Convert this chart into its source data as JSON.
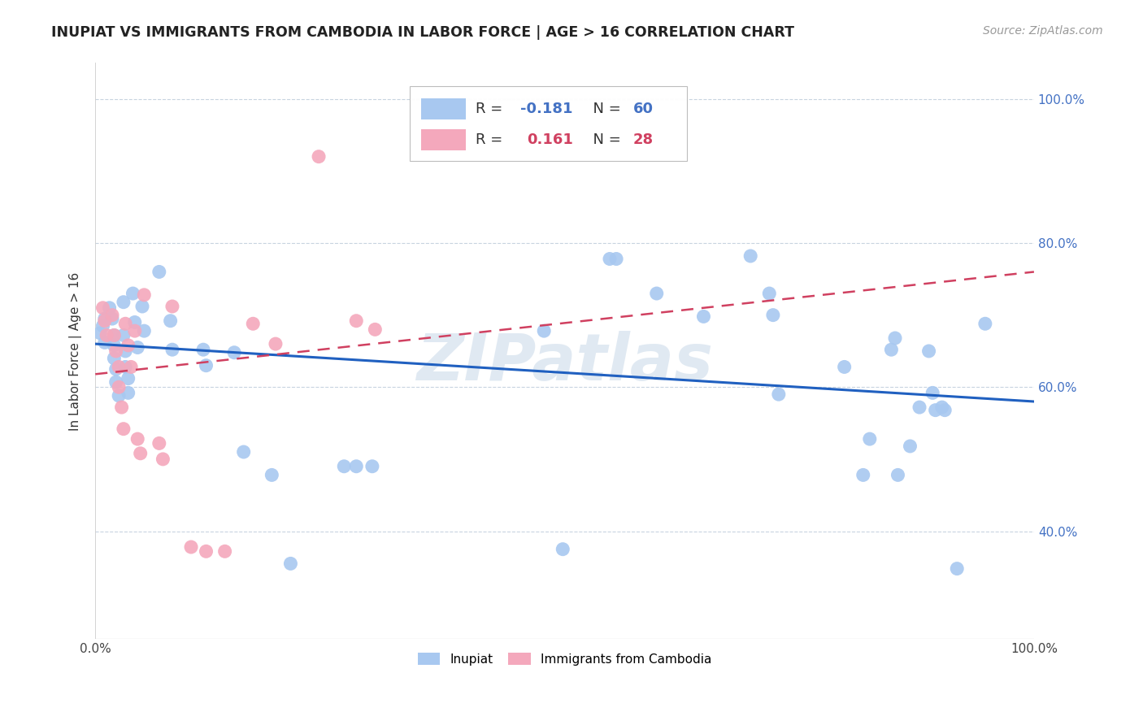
{
  "title": "INUPIAT VS IMMIGRANTS FROM CAMBODIA IN LABOR FORCE | AGE > 16 CORRELATION CHART",
  "source": "Source: ZipAtlas.com",
  "xlabel": "",
  "ylabel": "In Labor Force | Age > 16",
  "legend_label1": "Inupiat",
  "legend_label2": "Immigrants from Cambodia",
  "R1": -0.181,
  "N1": 60,
  "R2": 0.161,
  "N2": 28,
  "xlim": [
    0,
    1.0
  ],
  "ylim": [
    0.25,
    1.05
  ],
  "xticks": [
    0.0,
    1.0
  ],
  "xticklabels": [
    "0.0%",
    "100.0%"
  ],
  "yticks": [
    0.4,
    0.6,
    0.8,
    1.0
  ],
  "yticklabels": [
    "40.0%",
    "60.0%",
    "80.0%",
    "100.0%"
  ],
  "color_blue": "#A8C8F0",
  "color_pink": "#F4A8BC",
  "line_color_blue": "#2060C0",
  "line_color_pink": "#D04060",
  "background_color": "#FFFFFF",
  "grid_color": "#C8D4E0",
  "watermark": "ZIPatlas",
  "blue_scatter": [
    [
      0.005,
      0.675
    ],
    [
      0.008,
      0.685
    ],
    [
      0.01,
      0.695
    ],
    [
      0.01,
      0.662
    ],
    [
      0.015,
      0.71
    ],
    [
      0.018,
      0.695
    ],
    [
      0.02,
      0.672
    ],
    [
      0.02,
      0.658
    ],
    [
      0.02,
      0.64
    ],
    [
      0.022,
      0.625
    ],
    [
      0.022,
      0.607
    ],
    [
      0.025,
      0.588
    ],
    [
      0.03,
      0.718
    ],
    [
      0.03,
      0.672
    ],
    [
      0.032,
      0.65
    ],
    [
      0.032,
      0.628
    ],
    [
      0.035,
      0.612
    ],
    [
      0.035,
      0.592
    ],
    [
      0.04,
      0.73
    ],
    [
      0.042,
      0.69
    ],
    [
      0.045,
      0.655
    ],
    [
      0.05,
      0.712
    ],
    [
      0.052,
      0.678
    ],
    [
      0.068,
      0.76
    ],
    [
      0.08,
      0.692
    ],
    [
      0.082,
      0.652
    ],
    [
      0.115,
      0.652
    ],
    [
      0.118,
      0.63
    ],
    [
      0.148,
      0.648
    ],
    [
      0.158,
      0.51
    ],
    [
      0.188,
      0.478
    ],
    [
      0.208,
      0.355
    ],
    [
      0.265,
      0.49
    ],
    [
      0.278,
      0.49
    ],
    [
      0.295,
      0.49
    ],
    [
      0.478,
      0.678
    ],
    [
      0.498,
      0.375
    ],
    [
      0.548,
      0.778
    ],
    [
      0.555,
      0.778
    ],
    [
      0.598,
      0.73
    ],
    [
      0.648,
      0.698
    ],
    [
      0.698,
      0.782
    ],
    [
      0.718,
      0.73
    ],
    [
      0.722,
      0.7
    ],
    [
      0.728,
      0.59
    ],
    [
      0.798,
      0.628
    ],
    [
      0.818,
      0.478
    ],
    [
      0.825,
      0.528
    ],
    [
      0.848,
      0.652
    ],
    [
      0.852,
      0.668
    ],
    [
      0.855,
      0.478
    ],
    [
      0.868,
      0.518
    ],
    [
      0.878,
      0.572
    ],
    [
      0.888,
      0.65
    ],
    [
      0.892,
      0.592
    ],
    [
      0.895,
      0.568
    ],
    [
      0.902,
      0.572
    ],
    [
      0.905,
      0.568
    ],
    [
      0.918,
      0.348
    ],
    [
      0.948,
      0.688
    ]
  ],
  "pink_scatter": [
    [
      0.008,
      0.71
    ],
    [
      0.01,
      0.692
    ],
    [
      0.012,
      0.672
    ],
    [
      0.018,
      0.7
    ],
    [
      0.02,
      0.672
    ],
    [
      0.022,
      0.65
    ],
    [
      0.025,
      0.628
    ],
    [
      0.025,
      0.6
    ],
    [
      0.028,
      0.572
    ],
    [
      0.03,
      0.542
    ],
    [
      0.032,
      0.688
    ],
    [
      0.035,
      0.658
    ],
    [
      0.038,
      0.628
    ],
    [
      0.042,
      0.678
    ],
    [
      0.045,
      0.528
    ],
    [
      0.048,
      0.508
    ],
    [
      0.052,
      0.728
    ],
    [
      0.068,
      0.522
    ],
    [
      0.072,
      0.5
    ],
    [
      0.082,
      0.712
    ],
    [
      0.102,
      0.378
    ],
    [
      0.118,
      0.372
    ],
    [
      0.138,
      0.372
    ],
    [
      0.168,
      0.688
    ],
    [
      0.192,
      0.66
    ],
    [
      0.238,
      0.92
    ],
    [
      0.278,
      0.692
    ],
    [
      0.298,
      0.68
    ]
  ],
  "blue_line_x": [
    0.0,
    1.0
  ],
  "blue_line_y": [
    0.66,
    0.58
  ],
  "pink_line_x": [
    0.0,
    1.0
  ],
  "pink_line_y": [
    0.618,
    0.76
  ]
}
